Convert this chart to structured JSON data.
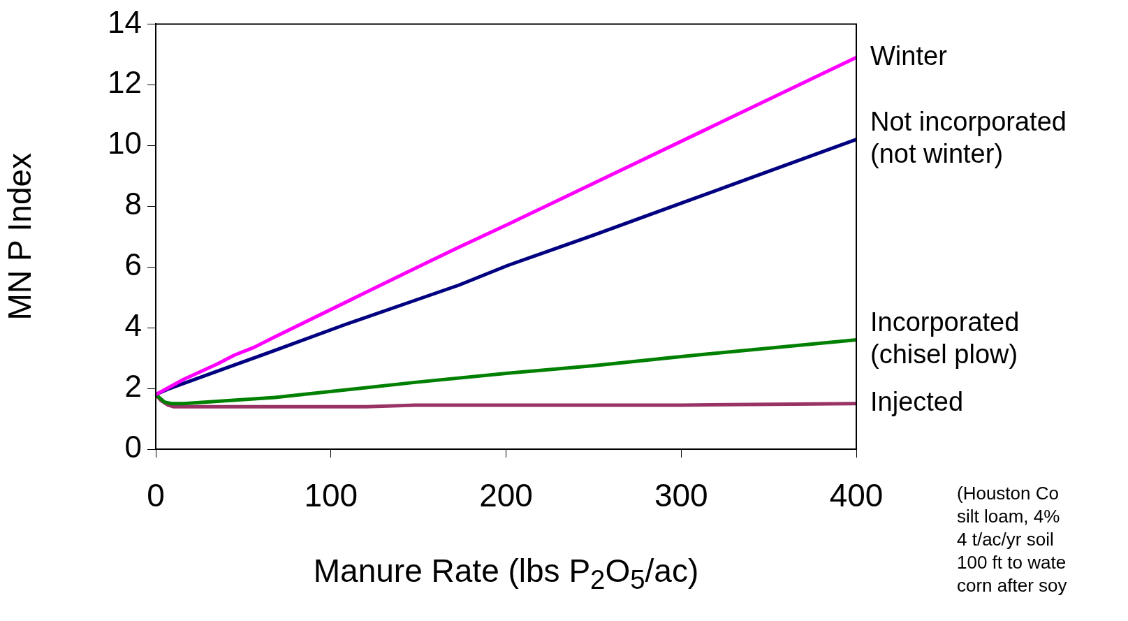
{
  "chart_data": {
    "type": "line",
    "xlabel": "Manure Rate (lbs P$_{2}$O$_{5}$/ac)",
    "ylabel": "MN P Index",
    "xlim": [
      0,
      400
    ],
    "xticks": [
      0,
      100,
      200,
      300,
      400
    ],
    "ylim": [
      0,
      14
    ],
    "yticks": [
      0,
      2,
      4,
      6,
      8,
      10,
      12,
      14
    ],
    "grid": false,
    "legend": false,
    "marker": "none",
    "line_style": "solid",
    "annotations": [
      "(Houston Co\nsilt loam, 4%\n4 t/ac/yr soil\n100 ft to wate\ncorn after soy"
    ],
    "series": [
      {
        "name": "Winter",
        "color": "#ff00ff",
        "x": [
          0,
          16,
          35,
          45,
          56,
          68,
          148,
          173,
          201,
          400
        ],
        "values": [
          1.8,
          2.3,
          2.8,
          3.1,
          3.35,
          3.7,
          5.95,
          6.65,
          7.4,
          12.9
        ]
      },
      {
        "name": "Not incorporated\n(not winter)",
        "color": "#000080",
        "x": [
          0,
          8,
          39,
          68,
          108,
          148,
          173,
          201,
          250,
          300,
          400
        ],
        "values": [
          1.8,
          2.0,
          2.65,
          3.25,
          4.1,
          4.9,
          5.4,
          6.05,
          7.05,
          8.1,
          10.2
        ]
      },
      {
        "name": "Incorporated\n(chisel plow)",
        "color": "#008000",
        "x": [
          0,
          5,
          9,
          16,
          68,
          148,
          201,
          250,
          300,
          400
        ],
        "values": [
          1.8,
          1.55,
          1.5,
          1.5,
          1.7,
          2.2,
          2.5,
          2.75,
          3.05,
          3.6
        ]
      },
      {
        "name": "Injected",
        "color": "#993366",
        "x": [
          0,
          3,
          7,
          10,
          120,
          148,
          300,
          400
        ],
        "values": [
          1.8,
          1.6,
          1.45,
          1.4,
          1.4,
          1.45,
          1.45,
          1.5
        ]
      }
    ]
  }
}
